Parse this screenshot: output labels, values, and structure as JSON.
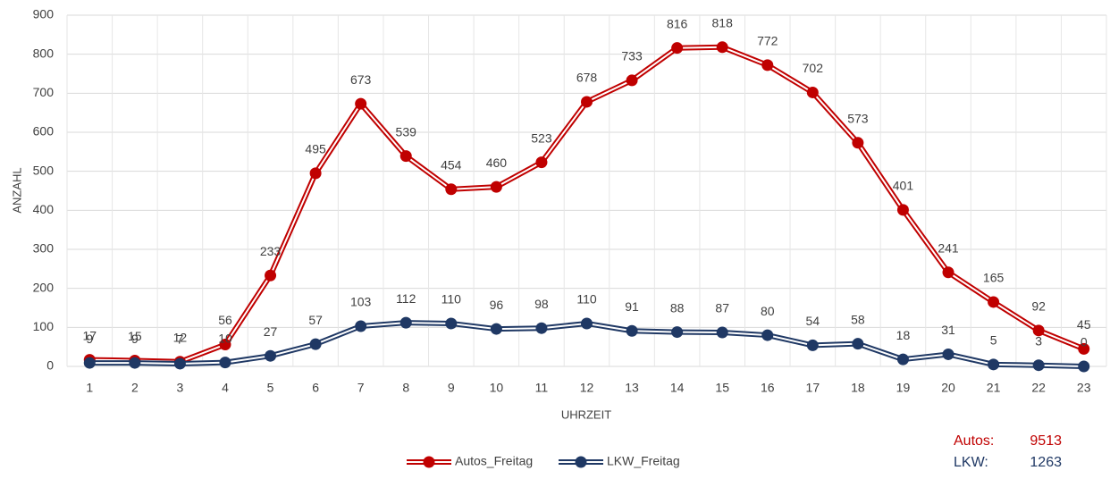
{
  "chart_data": {
    "type": "line",
    "xlabel": "UHRZEIT",
    "ylabel": "ANZAHL",
    "categories": [
      "1",
      "2",
      "3",
      "4",
      "5",
      "6",
      "7",
      "8",
      "9",
      "10",
      "11",
      "12",
      "13",
      "14",
      "15",
      "16",
      "17",
      "18",
      "19",
      "20",
      "21",
      "22",
      "23"
    ],
    "series": [
      {
        "name": "Autos_Freitag",
        "color": "#c00000",
        "values": [
          17,
          15,
          12,
          56,
          233,
          495,
          673,
          539,
          454,
          460,
          523,
          678,
          733,
          816,
          818,
          772,
          702,
          573,
          401,
          241,
          165,
          92,
          45
        ]
      },
      {
        "name": "LKW_Freitag",
        "color": "#1f3864",
        "values": [
          9,
          9,
          7,
          10,
          27,
          57,
          103,
          112,
          110,
          96,
          98,
          110,
          91,
          88,
          87,
          80,
          54,
          58,
          18,
          31,
          5,
          3,
          0
        ]
      }
    ],
    "ylim": [
      0,
      900
    ],
    "yticks": [
      0,
      100,
      200,
      300,
      400,
      500,
      600,
      700,
      800,
      900
    ],
    "grid": true,
    "legend": "bottom",
    "annotations": [
      {
        "text": "Autos:",
        "value": 9513,
        "color": "#c00000"
      },
      {
        "text": "LKW:",
        "value": 1263,
        "color": "#1f3864"
      }
    ]
  }
}
